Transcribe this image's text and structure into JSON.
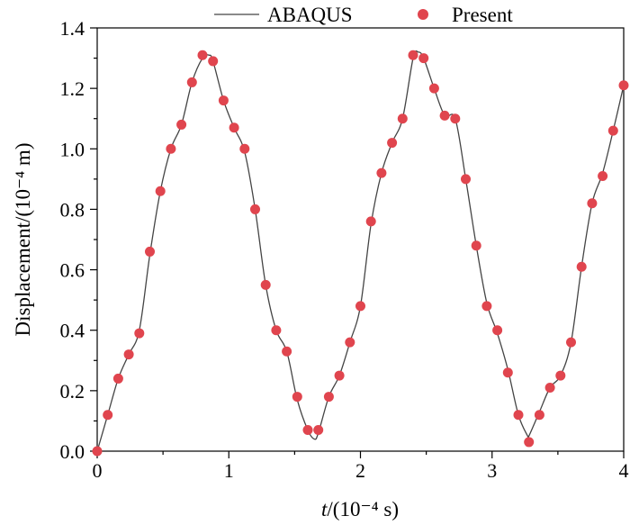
{
  "chart_data": {
    "type": "line",
    "title": "",
    "xlabel_italic": "t",
    "xlabel_rest": "/(10⁻⁴ s)",
    "ylabel": "Displacement/(10⁻⁴ m)",
    "xlim": [
      0,
      4
    ],
    "ylim": [
      0,
      1.4
    ],
    "xticks": [
      0,
      1,
      2,
      3,
      4
    ],
    "xtick_labels": [
      "0",
      "1",
      "2",
      "3",
      "4"
    ],
    "yticks": [
      0.0,
      0.2,
      0.4,
      0.6,
      0.8,
      1.0,
      1.2,
      1.4
    ],
    "ytick_labels": [
      "0.0",
      "0.2",
      "0.4",
      "0.6",
      "0.8",
      "1.0",
      "1.2",
      "1.4"
    ],
    "grid": false,
    "legend_position": "top",
    "series": [
      {
        "name": "ABAQUS",
        "style": "line",
        "color": "#444444",
        "x": [
          0,
          0.08,
          0.16,
          0.24,
          0.32,
          0.4,
          0.48,
          0.56,
          0.64,
          0.72,
          0.8,
          0.85,
          0.88,
          0.96,
          1.04,
          1.12,
          1.2,
          1.28,
          1.36,
          1.44,
          1.52,
          1.6,
          1.65,
          1.68,
          1.76,
          1.84,
          1.92,
          2.0,
          2.08,
          2.16,
          2.24,
          2.32,
          2.4,
          2.44,
          2.48,
          2.56,
          2.64,
          2.72,
          2.8,
          2.88,
          2.96,
          3.04,
          3.12,
          3.2,
          3.27,
          3.28,
          3.36,
          3.44,
          3.52,
          3.6,
          3.68,
          3.76,
          3.84,
          3.92,
          4.0
        ],
        "y": [
          0.0,
          0.12,
          0.24,
          0.32,
          0.4,
          0.65,
          0.86,
          1.0,
          1.08,
          1.22,
          1.3,
          1.31,
          1.29,
          1.16,
          1.07,
          0.99,
          0.8,
          0.55,
          0.4,
          0.33,
          0.17,
          0.07,
          0.04,
          0.06,
          0.18,
          0.25,
          0.36,
          0.48,
          0.75,
          0.92,
          1.02,
          1.1,
          1.3,
          1.32,
          1.3,
          1.2,
          1.11,
          1.1,
          0.9,
          0.68,
          0.49,
          0.39,
          0.27,
          0.12,
          0.05,
          0.05,
          0.13,
          0.21,
          0.25,
          0.36,
          0.61,
          0.82,
          0.92,
          1.06,
          1.21
        ]
      },
      {
        "name": "Present",
        "style": "scatter",
        "color": "#e0454e",
        "x": [
          0,
          0.08,
          0.16,
          0.24,
          0.32,
          0.4,
          0.48,
          0.56,
          0.64,
          0.72,
          0.8,
          0.88,
          0.96,
          1.04,
          1.12,
          1.2,
          1.28,
          1.36,
          1.44,
          1.52,
          1.6,
          1.68,
          1.76,
          1.84,
          1.92,
          2.0,
          2.08,
          2.16,
          2.24,
          2.32,
          2.4,
          2.48,
          2.56,
          2.64,
          2.72,
          2.8,
          2.88,
          2.96,
          3.04,
          3.12,
          3.2,
          3.28,
          3.36,
          3.44,
          3.52,
          3.6,
          3.68,
          3.76,
          3.84,
          3.92,
          4.0
        ],
        "y": [
          0.0,
          0.12,
          0.24,
          0.32,
          0.39,
          0.66,
          0.86,
          1.0,
          1.08,
          1.22,
          1.31,
          1.29,
          1.16,
          1.07,
          1.0,
          0.8,
          0.55,
          0.4,
          0.33,
          0.18,
          0.07,
          0.07,
          0.18,
          0.25,
          0.36,
          0.48,
          0.76,
          0.92,
          1.02,
          1.1,
          1.31,
          1.3,
          1.2,
          1.11,
          1.1,
          0.9,
          0.68,
          0.48,
          0.4,
          0.26,
          0.12,
          0.03,
          0.12,
          0.21,
          0.25,
          0.36,
          0.61,
          0.82,
          0.91,
          1.06,
          1.21
        ]
      }
    ]
  }
}
